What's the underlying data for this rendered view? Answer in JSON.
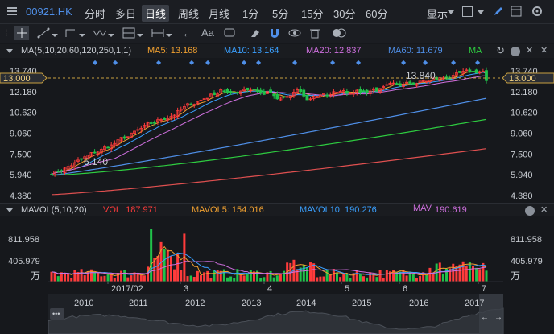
{
  "topbar": {
    "symbol": "00921.HK",
    "timeframes": [
      "分时",
      "多日",
      "日线",
      "周线",
      "月线",
      "1分",
      "5分",
      "15分",
      "30分",
      "60分"
    ],
    "active_timeframe": "日线",
    "display_label": "显示"
  },
  "toolbar": {
    "aa_label": "Aa"
  },
  "ma_header": {
    "params": "MA(5,10,20,60,120,250,1,1)",
    "ma5": "MA5: 13.168",
    "ma10": "MA10: 13.164",
    "ma20": "MA20: 12.837",
    "ma60": "MA60: 11.679",
    "ma_more": "MA"
  },
  "vol_header": {
    "params": "MAVOL(5,10,20)",
    "vol": "VOL: 187.971",
    "mavol5": "MAVOL5: 154.016",
    "mavol10": "MAVOL10: 190.276",
    "mav": "MAV",
    "mav_value": "190.619"
  },
  "price_axis": [
    "13.740",
    "12.180",
    "10.620",
    "9.060",
    "7.500",
    "5.940",
    "4.380"
  ],
  "current_price_tag": "13.000",
  "price_annotations": {
    "high": "13.840",
    "low": "6.140"
  },
  "volume_axis": [
    "811.958",
    "405.979"
  ],
  "volume_unit": "万",
  "date_labels": [
    "2017/02",
    "3",
    "4",
    "5",
    "6",
    "7"
  ],
  "navigator_years": [
    "2010",
    "2011",
    "2012",
    "2013",
    "2014",
    "2015",
    "2016",
    "2017"
  ],
  "navigator_menu": "•••",
  "colors": {
    "up": "#ff3b3b",
    "down": "#20c24a",
    "ma5": "#f0a030",
    "ma10": "#3aa0ff",
    "ma20": "#d070e0",
    "ma60": "#4f8fe8",
    "ma120": "#2ecc40",
    "ma250": "#e05050",
    "accent": "#4f8fe8"
  },
  "chart_data": {
    "type": "candlestick",
    "x": [
      "2017/02",
      "3",
      "4",
      "5",
      "6",
      "7"
    ],
    "ylim": [
      4.38,
      13.74
    ],
    "high": 13.84,
    "low": 6.14,
    "last": 13.0,
    "series": [
      {
        "name": "MA5",
        "last": 13.168
      },
      {
        "name": "MA10",
        "last": 13.164
      },
      {
        "name": "MA20",
        "last": 12.837
      },
      {
        "name": "MA60",
        "last": 11.679
      }
    ],
    "volume": {
      "last": 187.971,
      "mavol5": 154.016,
      "mavol10": 190.276,
      "mav": 190.619,
      "ylim": [
        0,
        811.958
      ]
    }
  }
}
